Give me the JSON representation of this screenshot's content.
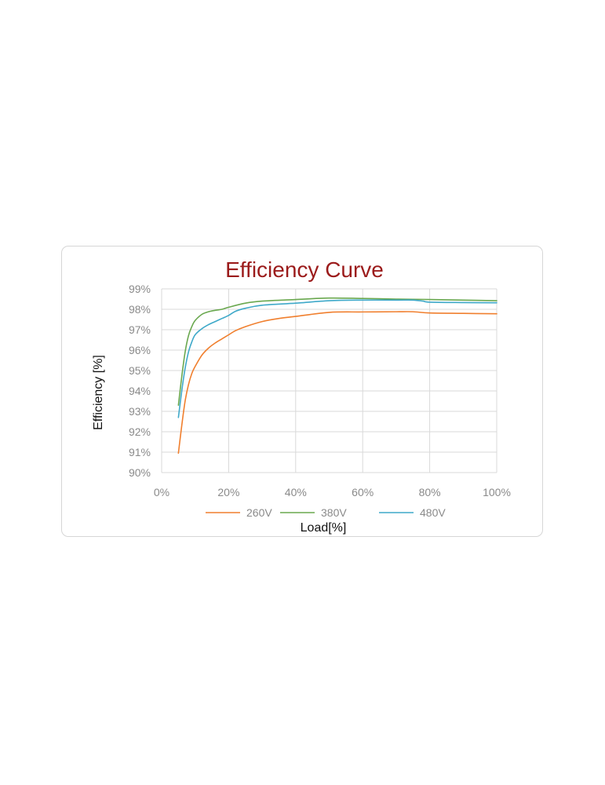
{
  "chart_data": {
    "type": "line",
    "title": "Efficiency Curve",
    "xlabel": "Load[%]",
    "ylabel": "Efficiency [%]",
    "xlim": [
      0,
      100
    ],
    "ylim": [
      90,
      99
    ],
    "x_ticks": [
      "0%",
      "20%",
      "40%",
      "60%",
      "80%",
      "100%"
    ],
    "y_ticks": [
      "90%",
      "91%",
      "92%",
      "93%",
      "94%",
      "95%",
      "96%",
      "97%",
      "98%",
      "99%"
    ],
    "grid": true,
    "legend_position": "bottom",
    "series": [
      {
        "name": "260V",
        "color": "#f07f2e",
        "x": [
          5,
          6,
          7,
          8,
          9,
          10,
          12,
          14,
          16,
          18,
          20,
          22,
          25,
          30,
          35,
          40,
          50,
          60,
          70,
          75,
          80,
          90,
          100
        ],
        "y": [
          90.95,
          92.3,
          93.5,
          94.3,
          94.85,
          95.2,
          95.75,
          96.1,
          96.35,
          96.55,
          96.75,
          96.95,
          97.15,
          97.4,
          97.55,
          97.65,
          97.85,
          97.87,
          97.88,
          97.88,
          97.82,
          97.8,
          97.78
        ]
      },
      {
        "name": "380V",
        "color": "#6aa84f",
        "x": [
          5,
          6,
          7,
          8,
          9,
          10,
          12,
          14,
          16,
          18,
          20,
          25,
          30,
          40,
          50,
          60,
          70,
          80,
          90,
          100
        ],
        "y": [
          93.3,
          94.7,
          95.9,
          96.7,
          97.15,
          97.45,
          97.75,
          97.88,
          97.95,
          98.0,
          98.1,
          98.3,
          98.4,
          98.48,
          98.55,
          98.53,
          98.5,
          98.48,
          98.45,
          98.42
        ]
      },
      {
        "name": "480V",
        "color": "#3fa9c9",
        "x": [
          5,
          6,
          7,
          8,
          9,
          10,
          12,
          14,
          16,
          18,
          20,
          22,
          25,
          30,
          40,
          50,
          60,
          70,
          75,
          78,
          80,
          90,
          100
        ],
        "y": [
          92.7,
          94.0,
          95.1,
          95.9,
          96.4,
          96.75,
          97.05,
          97.25,
          97.4,
          97.55,
          97.7,
          97.9,
          98.05,
          98.2,
          98.3,
          98.42,
          98.45,
          98.45,
          98.45,
          98.4,
          98.35,
          98.33,
          98.32
        ]
      }
    ]
  }
}
